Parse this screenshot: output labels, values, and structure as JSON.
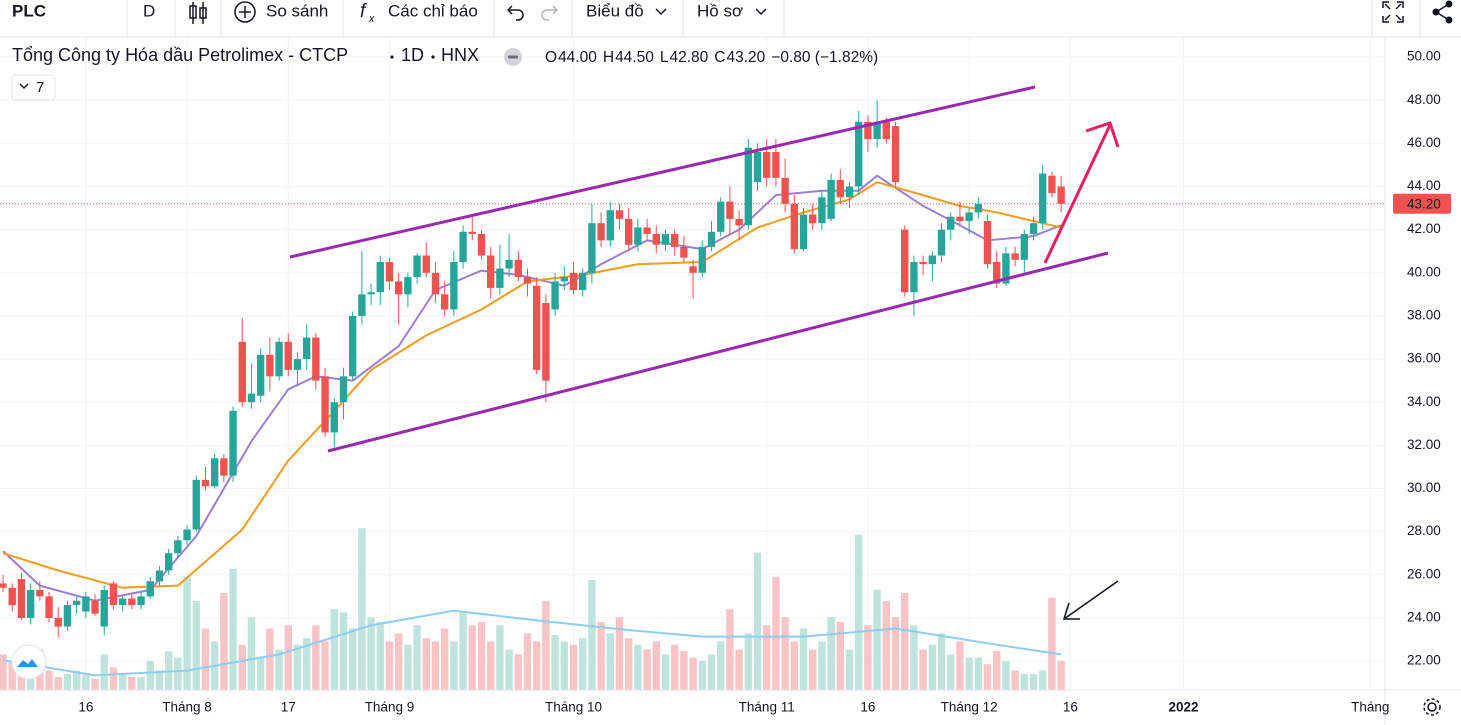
{
  "toolbar": {
    "symbol": "PLC",
    "interval": "D",
    "compare": "So sánh",
    "indicators": "Các chỉ báo",
    "chart_menu": "Biểu đồ",
    "profile_menu": "Hồ sơ"
  },
  "chart_data": {
    "type": "candlestick",
    "title": "Tổng Công ty Hóa dầu Petrolimex - CTCP",
    "interval": "1D",
    "exchange": "HNX",
    "legend_values": [
      {
        "key": "O",
        "value": "44.00"
      },
      {
        "key": "H",
        "value": "44.50"
      },
      {
        "key": "L",
        "value": "42.80"
      },
      {
        "key": "C",
        "value": "43.20"
      }
    ],
    "change": "−0.80 (−1.82%)",
    "indicator_count": 7,
    "up_color": "#26a69a",
    "down_color": "#ef5350",
    "volume_up_color": "#bfe4dd",
    "volume_down_color": "#f9c4c6",
    "ohlc": [
      [
        25.6,
        26.0,
        25.2,
        25.4
      ],
      [
        25.4,
        25.6,
        24.3,
        24.6
      ],
      [
        25.8,
        26.1,
        23.9,
        24.0
      ],
      [
        24.0,
        25.6,
        23.7,
        25.3
      ],
      [
        25.3,
        25.7,
        24.8,
        25.0
      ],
      [
        25.0,
        25.2,
        23.8,
        24.0
      ],
      [
        24.0,
        24.5,
        23.1,
        23.6
      ],
      [
        23.6,
        24.8,
        23.4,
        24.6
      ],
      [
        24.6,
        25.0,
        24.2,
        24.8
      ],
      [
        24.3,
        25.2,
        24.0,
        25.0
      ],
      [
        24.8,
        25.1,
        24.1,
        24.2
      ],
      [
        23.6,
        25.5,
        23.2,
        25.3
      ],
      [
        25.6,
        25.7,
        24.4,
        24.6
      ],
      [
        24.6,
        25.0,
        24.3,
        24.9
      ],
      [
        24.9,
        25.1,
        24.4,
        24.6
      ],
      [
        24.6,
        25.2,
        24.4,
        25.0
      ],
      [
        25.0,
        25.9,
        24.9,
        25.7
      ],
      [
        25.7,
        26.4,
        25.5,
        26.2
      ],
      [
        26.2,
        27.2,
        26.0,
        27.0
      ],
      [
        27.0,
        27.8,
        26.8,
        27.6
      ],
      [
        27.6,
        28.3,
        27.4,
        28.1
      ],
      [
        28.1,
        30.6,
        28.0,
        30.4
      ],
      [
        30.4,
        31.0,
        29.9,
        30.1
      ],
      [
        30.1,
        31.6,
        30.0,
        31.4
      ],
      [
        31.4,
        31.6,
        30.3,
        30.6
      ],
      [
        30.6,
        33.8,
        30.3,
        33.6
      ],
      [
        36.8,
        37.9,
        33.8,
        34.0
      ],
      [
        34.0,
        35.8,
        33.7,
        34.4
      ],
      [
        34.3,
        36.5,
        34.0,
        36.2
      ],
      [
        36.2,
        37.0,
        34.5,
        35.2
      ],
      [
        35.2,
        37.0,
        35.0,
        36.8
      ],
      [
        36.8,
        37.2,
        35.2,
        35.5
      ],
      [
        35.5,
        36.3,
        34.8,
        36.0
      ],
      [
        36.0,
        37.6,
        35.5,
        37.0
      ],
      [
        37.0,
        37.2,
        34.6,
        35.0
      ],
      [
        35.2,
        35.6,
        32.4,
        32.6
      ],
      [
        32.6,
        34.2,
        31.9,
        34.0
      ],
      [
        34.0,
        35.6,
        33.2,
        35.2
      ],
      [
        35.2,
        38.2,
        35.0,
        38.0
      ],
      [
        38.0,
        41.0,
        37.6,
        39.0
      ],
      [
        39.0,
        39.5,
        38.5,
        39.1
      ],
      [
        39.1,
        40.8,
        38.5,
        40.5
      ],
      [
        40.5,
        40.7,
        39.2,
        39.6
      ],
      [
        39.6,
        40.0,
        37.6,
        39.0
      ],
      [
        39.0,
        40.0,
        38.4,
        39.8
      ],
      [
        39.8,
        40.9,
        39.5,
        40.8
      ],
      [
        40.8,
        41.4,
        39.8,
        40.0
      ],
      [
        40.0,
        40.5,
        38.6,
        39.0
      ],
      [
        39.0,
        39.6,
        38.0,
        38.3
      ],
      [
        38.3,
        41.0,
        38.0,
        40.5
      ],
      [
        40.5,
        42.2,
        40.2,
        41.9
      ],
      [
        41.9,
        42.7,
        41.5,
        41.8
      ],
      [
        41.8,
        42.0,
        40.6,
        40.8
      ],
      [
        40.8,
        41.2,
        38.8,
        39.3
      ],
      [
        39.3,
        41.3,
        39.0,
        40.2
      ],
      [
        40.2,
        41.8,
        39.8,
        40.6
      ],
      [
        40.6,
        41.0,
        39.6,
        39.8
      ],
      [
        39.8,
        40.2,
        38.9,
        39.5
      ],
      [
        39.4,
        39.8,
        35.3,
        35.5
      ],
      [
        38.6,
        39.0,
        34.0,
        35.0
      ],
      [
        38.3,
        40.0,
        38.0,
        39.6
      ],
      [
        39.6,
        40.3,
        39.2,
        39.8
      ],
      [
        40.0,
        40.5,
        39.0,
        39.2
      ],
      [
        39.2,
        40.2,
        38.9,
        40.0
      ],
      [
        40.0,
        43.2,
        39.5,
        42.3
      ],
      [
        42.3,
        42.8,
        41.2,
        41.5
      ],
      [
        41.5,
        43.3,
        41.2,
        42.9
      ],
      [
        42.9,
        43.2,
        42.0,
        42.5
      ],
      [
        42.5,
        43.0,
        41.0,
        41.3
      ],
      [
        41.3,
        42.5,
        41.0,
        42.1
      ],
      [
        42.1,
        42.5,
        41.5,
        41.8
      ],
      [
        41.8,
        42.2,
        40.9,
        41.3
      ],
      [
        41.3,
        42.0,
        41.0,
        41.8
      ],
      [
        41.8,
        42.0,
        40.8,
        41.2
      ],
      [
        41.2,
        41.7,
        40.5,
        40.7
      ],
      [
        40.3,
        40.6,
        38.8,
        40.0
      ],
      [
        40.0,
        41.5,
        39.8,
        41.2
      ],
      [
        41.2,
        42.4,
        41.0,
        41.9
      ],
      [
        41.9,
        43.5,
        41.7,
        43.3
      ],
      [
        43.3,
        44.0,
        41.8,
        42.5
      ],
      [
        42.5,
        42.9,
        41.5,
        42.2
      ],
      [
        42.2,
        46.2,
        42.0,
        45.8
      ],
      [
        44.2,
        46.0,
        43.8,
        45.6
      ],
      [
        45.6,
        46.2,
        44.0,
        44.4
      ],
      [
        45.6,
        46.2,
        44.0,
        44.4
      ],
      [
        44.4,
        45.3,
        42.8,
        43.2
      ],
      [
        43.2,
        43.6,
        40.9,
        41.1
      ],
      [
        41.1,
        43.0,
        41.0,
        42.7
      ],
      [
        42.7,
        43.2,
        42.0,
        42.3
      ],
      [
        42.3,
        43.8,
        42.0,
        43.5
      ],
      [
        42.5,
        44.6,
        42.4,
        44.3
      ],
      [
        44.3,
        44.8,
        43.2,
        43.5
      ],
      [
        43.5,
        44.2,
        43.0,
        44.0
      ],
      [
        44.0,
        47.5,
        43.6,
        47.0
      ],
      [
        47.0,
        47.3,
        45.6,
        46.2
      ],
      [
        46.2,
        48.0,
        45.8,
        47.0
      ],
      [
        47.0,
        47.2,
        46.0,
        46.2
      ],
      [
        46.8,
        47.0,
        44.0,
        44.2
      ],
      [
        42.0,
        42.2,
        38.9,
        39.1
      ],
      [
        39.1,
        40.8,
        38.0,
        40.5
      ],
      [
        40.5,
        40.8,
        39.9,
        40.4
      ],
      [
        40.4,
        41.0,
        39.6,
        40.8
      ],
      [
        40.8,
        42.3,
        40.5,
        42.0
      ],
      [
        42.0,
        42.8,
        41.5,
        42.6
      ],
      [
        42.6,
        43.3,
        42.2,
        42.4
      ],
      [
        42.4,
        43.0,
        41.8,
        42.8
      ],
      [
        42.8,
        43.5,
        42.5,
        43.2
      ],
      [
        42.4,
        42.7,
        40.2,
        40.4
      ],
      [
        40.5,
        41.0,
        39.3,
        39.5
      ],
      [
        39.5,
        41.2,
        39.4,
        40.9
      ],
      [
        40.9,
        41.2,
        40.3,
        40.6
      ],
      [
        40.6,
        42.0,
        40.0,
        41.8
      ],
      [
        41.8,
        42.6,
        41.5,
        42.3
      ],
      [
        42.3,
        45.0,
        42.0,
        44.6
      ],
      [
        44.5,
        44.7,
        43.5,
        43.7
      ],
      [
        44.0,
        44.5,
        42.8,
        43.2
      ]
    ],
    "volume": [
      22,
      18,
      20,
      15,
      25,
      12,
      8,
      10,
      12,
      9,
      7,
      22,
      14,
      10,
      8,
      8,
      18,
      12,
      24,
      20,
      70,
      55,
      38,
      30,
      60,
      75,
      28,
      45,
      20,
      38,
      25,
      40,
      28,
      32,
      40,
      30,
      50,
      48,
      38,
      100,
      45,
      42,
      30,
      35,
      28,
      40,
      32,
      30,
      38,
      30,
      48,
      40,
      42,
      30,
      40,
      25,
      22,
      35,
      30,
      55,
      34,
      30,
      28,
      32,
      68,
      42,
      35,
      45,
      32,
      28,
      25,
      30,
      22,
      28,
      24,
      20,
      18,
      22,
      30,
      50,
      25,
      35,
      85,
      40,
      70,
      45,
      30,
      38,
      25,
      30,
      45,
      42,
      25,
      96,
      40,
      62,
      55,
      45,
      60,
      40,
      25,
      28,
      35,
      22,
      30,
      20,
      20,
      16,
      24,
      18,
      12,
      10,
      10,
      12,
      57,
      18
    ],
    "ma": [
      {
        "color": "#9b7fd6",
        "x": [
          0,
          4,
          10,
          16,
          21,
          27,
          31,
          34,
          38,
          43,
          47,
          52,
          56,
          61,
          65,
          70,
          76,
          80,
          84,
          89,
          93,
          95,
          100,
          104,
          107,
          112,
          115
        ],
        "values": [
          27.1,
          25.5,
          24.8,
          25.3,
          27.8,
          32.2,
          34.6,
          35.2,
          35.0,
          36.6,
          39.2,
          40.1,
          39.9,
          39.4,
          40.4,
          41.5,
          41.1,
          42.0,
          43.6,
          43.8,
          43.8,
          44.5,
          43.1,
          42.2,
          41.5,
          41.7,
          42.2
        ]
      },
      {
        "color": "#f39c1f",
        "x": [
          0,
          6,
          13,
          19,
          26,
          31,
          36,
          40,
          46,
          52,
          57,
          63,
          69,
          76,
          82,
          87,
          92,
          95,
          100,
          104,
          108,
          113,
          115
        ],
        "values": [
          27.0,
          26.2,
          25.4,
          25.5,
          28.1,
          31.3,
          33.6,
          35.5,
          37.1,
          38.3,
          39.6,
          39.9,
          40.4,
          40.5,
          42.1,
          42.8,
          43.4,
          44.2,
          43.6,
          43.1,
          42.8,
          42.3,
          42.1
        ]
      }
    ],
    "volume_ma": {
      "color": "#8fcdf0",
      "x": [
        0,
        10,
        20,
        30,
        40,
        49,
        58,
        68,
        76,
        87,
        97,
        108,
        115
      ],
      "values": [
        18.5,
        9,
        12,
        22,
        40,
        49,
        43,
        37,
        33,
        33,
        38,
        28,
        22
      ]
    },
    "xlim": [
      -0.33,
      150.2
    ],
    "xticks": [
      {
        "value": 9,
        "label": "16"
      },
      {
        "value": 20,
        "label": "Tháng 8"
      },
      {
        "value": 31,
        "label": "17"
      },
      {
        "value": 42,
        "label": "Tháng 9"
      },
      {
        "value": 62,
        "label": "Tháng 10"
      },
      {
        "value": 83,
        "label": "Tháng 11"
      },
      {
        "value": 94,
        "label": "16"
      },
      {
        "value": 105,
        "label": "Tháng 12"
      },
      {
        "value": 116,
        "label": "16"
      },
      {
        "value": 128.3,
        "label": "2022"
      },
      {
        "value": 148.6,
        "label": "Tháng"
      }
    ],
    "ylim": [
      20.66,
      50.93
    ],
    "yticks": [
      {
        "value": 22,
        "label": "22.00"
      },
      {
        "value": 24,
        "label": "24.00"
      },
      {
        "value": 26,
        "label": "26.00"
      },
      {
        "value": 28,
        "label": "28.00"
      },
      {
        "value": 30,
        "label": "30.00"
      },
      {
        "value": 32,
        "label": "32.00"
      },
      {
        "value": 34,
        "label": "34.00"
      },
      {
        "value": 36,
        "label": "36.00"
      },
      {
        "value": 38,
        "label": "38.00"
      },
      {
        "value": 40,
        "label": "40.00"
      },
      {
        "value": 42,
        "label": "42.00"
      },
      {
        "value": 44,
        "label": "44.00"
      },
      {
        "value": 46,
        "label": "46.00"
      },
      {
        "value": 48,
        "label": "48.00"
      },
      {
        "value": 50,
        "label": "50.00"
      }
    ],
    "y2lim": [
      0,
      136
    ],
    "last_price": {
      "value": 43.2,
      "label": "43.20"
    },
    "grid": true
  }
}
